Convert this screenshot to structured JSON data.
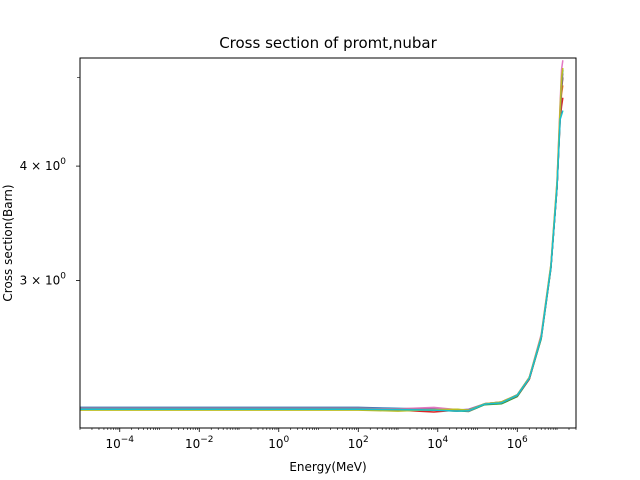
{
  "chart_data": {
    "type": "line",
    "title": "Cross section of promt,nubar",
    "xlabel": "Energy(MeV)",
    "ylabel": "Cross section(Barn)",
    "xscale": "log",
    "yscale": "log",
    "xlim": [
      1e-05,
      30000000.0
    ],
    "ylim": [
      2.07,
      5.25
    ],
    "grid": false,
    "legend": "none",
    "x_ticks": [
      {
        "value": 0.0001,
        "base": "10",
        "exp": "−4"
      },
      {
        "value": 0.01,
        "base": "10",
        "exp": "−2"
      },
      {
        "value": 1,
        "base": "10",
        "exp": "0"
      },
      {
        "value": 100.0,
        "base": "10",
        "exp": "2"
      },
      {
        "value": 10000.0,
        "base": "10",
        "exp": "4"
      },
      {
        "value": 1000000.0,
        "base": "10",
        "exp": "6"
      }
    ],
    "y_ticks": [
      {
        "value": 3,
        "label": "3 × 10",
        "exp": "0"
      },
      {
        "value": 4,
        "label": "4 × 10",
        "exp": "0"
      }
    ],
    "y_minor_ticks": [
      5
    ],
    "series": [
      {
        "color": "#1f77b4",
        "x": [
          1e-05,
          1,
          100,
          1000,
          8000,
          30000,
          60000,
          150000,
          400000,
          1000000,
          2000000,
          4000000,
          7000000,
          10000000,
          12000000,
          13000000,
          14000000
        ],
        "y": [
          2.18,
          2.18,
          2.18,
          2.175,
          2.17,
          2.17,
          2.16,
          2.2,
          2.21,
          2.25,
          2.35,
          2.6,
          3.1,
          3.8,
          4.6,
          5.0,
          5.05
        ]
      },
      {
        "color": "#ff7f0e",
        "x": [
          1e-05,
          1,
          100,
          1000,
          8000,
          30000,
          60000,
          150000,
          400000,
          1000000,
          2000000,
          4000000,
          7000000,
          10000000,
          12000000,
          13000000,
          14000000
        ],
        "y": [
          2.175,
          2.175,
          2.175,
          2.17,
          2.165,
          2.16,
          2.165,
          2.2,
          2.205,
          2.245,
          2.34,
          2.6,
          3.1,
          3.8,
          4.55,
          4.8,
          4.9
        ]
      },
      {
        "color": "#2ca02c",
        "x": [
          1e-05,
          1,
          100,
          1000,
          8000,
          30000,
          60000,
          150000,
          400000,
          1000000,
          2000000,
          4000000,
          7000000,
          10000000,
          12000000,
          13000000,
          14000000
        ],
        "y": [
          2.172,
          2.172,
          2.172,
          2.168,
          2.165,
          2.162,
          2.158,
          2.195,
          2.2,
          2.24,
          2.34,
          2.59,
          3.09,
          3.79,
          4.58,
          4.95,
          5.1
        ]
      },
      {
        "color": "#d62728",
        "x": [
          1e-05,
          1,
          100,
          1000,
          8000,
          30000,
          60000,
          150000,
          400000,
          1000000,
          2000000,
          4000000,
          7000000,
          10000000,
          12000000,
          13000000,
          14000000
        ],
        "y": [
          2.17,
          2.17,
          2.17,
          2.165,
          2.155,
          2.165,
          2.16,
          2.2,
          2.205,
          2.245,
          2.34,
          2.6,
          3.1,
          3.8,
          4.5,
          4.65,
          4.75
        ]
      },
      {
        "color": "#9467bd",
        "x": [
          1e-05,
          1,
          100,
          1000,
          8000,
          30000,
          60000,
          150000,
          400000,
          1000000,
          2000000,
          4000000,
          7000000,
          10000000,
          12000000,
          13000000,
          14000000
        ],
        "y": [
          2.168,
          2.168,
          2.168,
          2.172,
          2.175,
          2.165,
          2.17,
          2.2,
          2.21,
          2.25,
          2.35,
          2.6,
          3.1,
          3.8,
          4.6,
          4.9,
          5.0
        ]
      },
      {
        "color": "#8c564b",
        "x": [
          1e-05,
          1,
          100,
          1000,
          8000,
          30000,
          60000,
          150000,
          400000,
          1000000,
          2000000,
          4000000,
          7000000,
          10000000,
          12000000,
          13000000,
          14000000
        ],
        "y": [
          2.17,
          2.17,
          2.17,
          2.17,
          2.168,
          2.16,
          2.165,
          2.198,
          2.205,
          2.248,
          2.345,
          2.6,
          3.1,
          3.8,
          4.55,
          4.85,
          5.0
        ]
      },
      {
        "color": "#e377c2",
        "x": [
          1e-05,
          1,
          100,
          1000,
          8000,
          30000,
          60000,
          150000,
          400000,
          1000000,
          2000000,
          4000000,
          7000000,
          10000000,
          12000000,
          13000000,
          14000000
        ],
        "y": [
          2.175,
          2.175,
          2.175,
          2.172,
          2.18,
          2.168,
          2.16,
          2.2,
          2.21,
          2.25,
          2.35,
          2.62,
          3.12,
          3.85,
          4.7,
          5.1,
          5.22
        ]
      },
      {
        "color": "#7f7f7f",
        "x": [
          1e-05,
          1,
          100,
          1000,
          8000,
          30000,
          60000,
          150000,
          400000,
          1000000,
          2000000,
          4000000,
          7000000,
          10000000,
          12000000,
          13000000,
          14000000
        ],
        "y": [
          2.172,
          2.172,
          2.172,
          2.17,
          2.168,
          2.163,
          2.16,
          2.198,
          2.205,
          2.245,
          2.345,
          2.6,
          3.1,
          3.8,
          4.55,
          4.9,
          5.05
        ]
      },
      {
        "color": "#bcbd22",
        "x": [
          1e-05,
          1,
          100,
          1000,
          8000,
          30000,
          60000,
          150000,
          400000,
          1000000,
          2000000,
          4000000,
          7000000,
          10000000,
          12000000,
          13000000,
          14000000
        ],
        "y": [
          2.165,
          2.165,
          2.165,
          2.16,
          2.168,
          2.17,
          2.165,
          2.2,
          2.21,
          2.25,
          2.35,
          2.61,
          3.12,
          3.85,
          4.65,
          5.0,
          5.12
        ]
      },
      {
        "color": "#17becf",
        "x": [
          1e-05,
          1,
          100,
          1000,
          8000,
          30000,
          60000,
          150000,
          400000,
          1000000,
          2000000,
          4000000,
          7000000,
          10000000,
          12000000,
          13000000,
          14000000
        ],
        "y": [
          2.17,
          2.17,
          2.17,
          2.168,
          2.165,
          2.16,
          2.162,
          2.198,
          2.205,
          2.248,
          2.345,
          2.6,
          3.1,
          3.8,
          4.5,
          4.55,
          4.6
        ]
      }
    ]
  }
}
